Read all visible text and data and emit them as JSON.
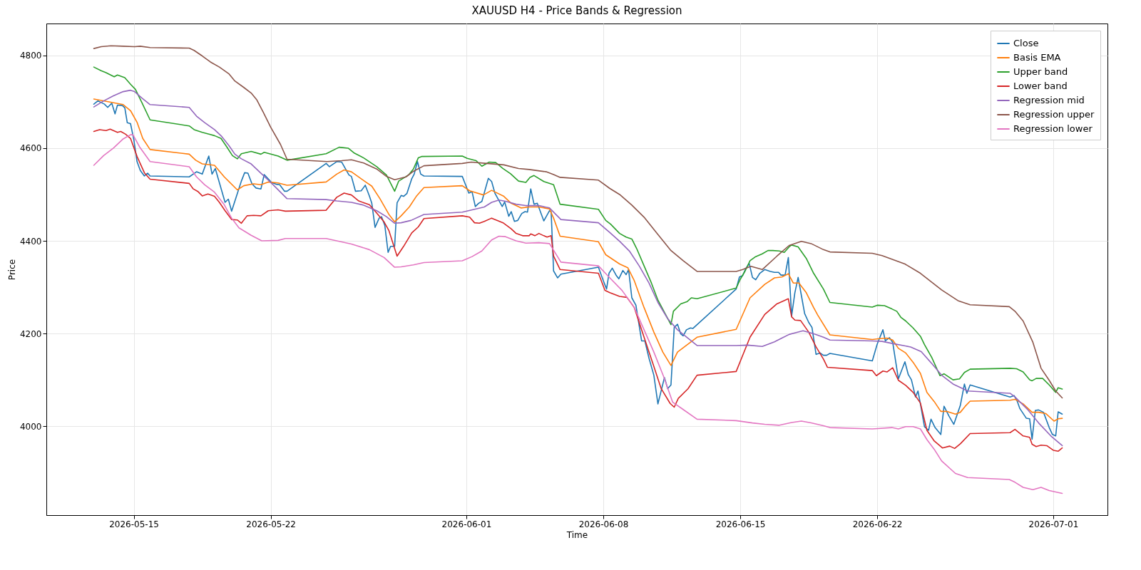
{
  "chart_data": {
    "type": "line",
    "title": "XAUUSD H4 - Price Bands & Regression",
    "xlabel": "Time",
    "ylabel": "Price",
    "xlim": [
      "2026-05-10T12:45",
      "2026-07-03T18:30"
    ],
    "xticks": [
      "2026-05-15",
      "2026-05-22",
      "2026-06-01",
      "2026-06-08",
      "2026-06-15",
      "2026-06-22",
      "2026-07-01"
    ],
    "ylim": [
      3808,
      4869
    ],
    "yticks": [
      4000,
      4200,
      4400,
      4600,
      4800
    ],
    "grid": true,
    "legend": "top right",
    "series": [
      {
        "name": "Close",
        "color": "#1f77b4",
        "x": [
          "2026-05-12T23:00",
          "2026-05-13T04:00",
          "2026-05-13T12:00",
          "2026-05-13T16:00",
          "2026-05-13T21:00",
          "2026-05-14T01:00",
          "2026-05-14T04:00",
          "2026-05-14T10:00",
          "2026-05-14T13:00",
          "2026-05-14T16:00",
          "2026-05-14T20:00",
          "2026-05-15T00:00",
          "2026-05-15T04:00",
          "2026-05-15T08:00",
          "2026-05-15T13:00",
          "2026-05-15T17:00",
          "2026-05-15T20:00",
          "2026-05-17T20:00",
          "2026-05-18T05:00",
          "2026-05-18T12:00",
          "2026-05-18T20:00",
          "2026-05-19T00:00",
          "2026-05-19T04:00",
          "2026-05-19T16:00",
          "2026-05-19T20:00",
          "2026-05-20T00:00",
          "2026-05-20T07:00",
          "2026-05-20T12:00",
          "2026-05-20T16:00",
          "2026-05-20T20:00",
          "2026-05-21T01:00",
          "2026-05-21T06:00",
          "2026-05-21T12:00",
          "2026-05-21T16:00",
          "2026-05-22T01:00",
          "2026-05-22T07:00",
          "2026-05-22T11:00",
          "2026-05-22T17:00",
          "2026-05-22T20:00",
          "2026-05-24T20:00",
          "2026-05-25T00:00",
          "2026-05-25T09:00",
          "2026-05-25T15:00",
          "2026-05-26T00:00",
          "2026-05-26T03:00",
          "2026-05-26T08:00",
          "2026-05-26T15:00",
          "2026-05-26T20:00",
          "2026-05-27T01:00",
          "2026-05-27T04:00",
          "2026-05-27T08:00",
          "2026-05-27T13:00",
          "2026-05-27T16:00",
          "2026-05-27T20:00",
          "2026-05-28T00:00",
          "2026-05-28T03:00",
          "2026-05-28T08:00",
          "2026-05-28T11:00",
          "2026-05-28T16:00",
          "2026-05-28T19:00",
          "2026-05-28T23:00",
          "2026-05-29T05:00",
          "2026-05-29T08:00",
          "2026-05-29T12:00",
          "2026-05-29T16:00",
          "2026-05-29T20:00",
          "2026-05-31T19:00",
          "2026-06-01T03:00",
          "2026-06-01T07:00",
          "2026-06-01T11:00",
          "2026-06-01T15:00",
          "2026-06-01T19:00",
          "2026-06-02T03:00",
          "2026-06-02T07:00",
          "2026-06-02T11:00",
          "2026-06-02T20:00",
          "2026-06-02T23:00",
          "2026-06-03T04:00",
          "2026-06-03T07:00",
          "2026-06-03T11:00",
          "2026-06-03T15:00",
          "2026-06-03T20:00",
          "2026-06-04T00:00",
          "2026-06-04T03:00",
          "2026-06-04T07:00",
          "2026-06-04T11:00",
          "2026-06-04T15:00",
          "2026-06-04T23:00",
          "2026-06-05T06:00",
          "2026-06-05T08:00",
          "2026-06-05T11:00",
          "2026-06-05T16:00",
          "2026-06-05T20:00",
          "2026-06-07T18:00",
          "2026-06-08T00:00",
          "2026-06-08T04:00",
          "2026-06-08T07:00",
          "2026-06-08T11:00",
          "2026-06-08T16:00",
          "2026-06-08T19:00",
          "2026-06-09T00:00",
          "2026-06-09T04:00",
          "2026-06-09T07:00",
          "2026-06-09T11:00",
          "2026-06-09T16:00",
          "2026-06-09T23:00",
          "2026-06-10T03:00",
          "2026-06-10T08:00",
          "2026-06-10T14:00",
          "2026-06-10T19:00",
          "2026-06-11T03:00",
          "2026-06-11T07:00",
          "2026-06-11T11:00",
          "2026-06-11T15:00",
          "2026-06-11T19:00",
          "2026-06-11T23:00",
          "2026-06-12T02:00",
          "2026-06-12T06:00",
          "2026-06-12T11:00",
          "2026-06-12T14:00",
          "2026-06-14T19:00",
          "2026-06-14T23:00",
          "2026-06-15T03:00",
          "2026-06-15T07:00",
          "2026-06-15T11:00",
          "2026-06-15T15:00",
          "2026-06-15T19:00",
          "2026-06-16T00:00",
          "2026-06-16T06:00",
          "2026-06-16T13:00",
          "2026-06-16T18:00",
          "2026-06-16T23:00",
          "2026-06-17T02:00",
          "2026-06-17T07:00",
          "2026-06-17T11:00",
          "2026-06-17T15:00",
          "2026-06-17T19:00",
          "2026-06-17T23:00",
          "2026-06-18T03:00",
          "2026-06-18T07:00",
          "2026-06-18T12:00",
          "2026-06-18T16:00",
          "2026-06-18T21:00",
          "2026-06-19T02:00",
          "2026-06-19T06:00",
          "2026-06-19T10:00",
          "2026-06-19T14:00",
          "2026-06-21T18:00",
          "2026-06-22T00:00",
          "2026-06-22T07:00",
          "2026-06-22T10:00",
          "2026-06-22T15:00",
          "2026-06-22T19:00",
          "2026-06-23T02:00",
          "2026-06-23T10:00",
          "2026-06-23T14:00",
          "2026-06-23T18:00",
          "2026-06-23T23:00",
          "2026-06-24T02:00",
          "2026-06-24T05:00",
          "2026-06-24T10:00",
          "2026-06-24T15:00",
          "2026-06-24T18:00",
          "2026-06-24T23:00",
          "2026-06-25T06:00",
          "2026-06-25T10:00",
          "2026-06-25T16:00",
          "2026-06-25T22:00",
          "2026-06-26T06:00",
          "2026-06-26T11:00",
          "2026-06-26T14:00",
          "2026-06-26T18:00",
          "2026-06-28T19:00",
          "2026-06-29T00:00",
          "2026-06-29T04:00",
          "2026-06-29T07:00",
          "2026-06-29T15:00",
          "2026-06-29T19:00",
          "2026-06-29T22:00",
          "2026-06-30T02:00",
          "2026-06-30T06:00",
          "2026-06-30T12:00",
          "2026-06-30T19:00",
          "2026-06-30T23:00",
          "2026-07-01T03:00",
          "2026-07-01T06:00",
          "2026-07-01T11:00"
        ],
        "values": [
          4695,
          4702,
          4695,
          4688,
          4697,
          4674,
          4693,
          4692,
          4687,
          4655,
          4653,
          4619,
          4571,
          4552,
          4540,
          4546,
          4540,
          4538,
          4549,
          4544,
          4583,
          4544,
          4556,
          4483,
          4490,
          4464,
          4502,
          4529,
          4547,
          4546,
          4523,
          4514,
          4512,
          4543,
          4526,
          4522,
          4521,
          4507,
          4507,
          4567,
          4560,
          4571,
          4570,
          4542,
          4539,
          4507,
          4508,
          4520,
          4497,
          4481,
          4429,
          4449,
          4452,
          4433,
          4375,
          4388,
          4388,
          4482,
          4498,
          4496,
          4502,
          4534,
          4544,
          4571,
          4544,
          4540,
          4539,
          4503,
          4506,
          4474,
          4481,
          4485,
          4535,
          4528,
          4503,
          4474,
          4484,
          4453,
          4463,
          4442,
          4444,
          4459,
          4463,
          4462,
          4512,
          4479,
          4481,
          4443,
          4465,
          4463,
          4335,
          4320,
          4328,
          4343,
          4314,
          4296,
          4330,
          4341,
          4325,
          4318,
          4336,
          4327,
          4338,
          4277,
          4261,
          4184,
          4184,
          4147,
          4110,
          4048,
          4105,
          4081,
          4089,
          4213,
          4220,
          4199,
          4195,
          4208,
          4212,
          4211,
          4296,
          4322,
          4325,
          4341,
          4351,
          4321,
          4316,
          4330,
          4338,
          4334,
          4332,
          4332,
          4326,
          4326,
          4364,
          4238,
          4288,
          4321,
          4282,
          4243,
          4224,
          4213,
          4155,
          4158,
          4153,
          4153,
          4157,
          4141,
          4177,
          4208,
          4184,
          4191,
          4181,
          4102,
          4139,
          4112,
          4100,
          4063,
          4076,
          4048,
          3999,
          3991,
          4015,
          3997,
          3982,
          4043,
          4022,
          4004,
          4045,
          4091,
          4071,
          4089,
          4063,
          4066,
          4053,
          4038,
          4017,
          4016,
          3972,
          4034,
          4035,
          4030,
          3997,
          3982,
          3979,
          4031,
          4026
        ]
      },
      {
        "name": "Basis EMA",
        "color": "#ff7f0e",
        "x": [
          "2026-05-12T23:00",
          "2026-05-13T20:00",
          "2026-05-14T11:00",
          "2026-05-14T20:00",
          "2026-05-15T04:00",
          "2026-05-15T11:00",
          "2026-05-15T20:00",
          "2026-05-17T20:00",
          "2026-05-18T04:00",
          "2026-05-18T12:00",
          "2026-05-19T03:00",
          "2026-05-19T15:00",
          "2026-05-20T07:00",
          "2026-05-20T15:00",
          "2026-05-21T03:00",
          "2026-05-21T12:00",
          "2026-05-21T21:00",
          "2026-05-22T09:00",
          "2026-05-22T20:00",
          "2026-05-24T20:00",
          "2026-05-25T09:00",
          "2026-05-25T18:00",
          "2026-05-26T03:00",
          "2026-05-26T18:00",
          "2026-05-27T04:00",
          "2026-05-27T14:00",
          "2026-05-28T01:00",
          "2026-05-28T08:00",
          "2026-05-28T16:00",
          "2026-05-29T02:00",
          "2026-05-29T11:00",
          "2026-05-29T20:00",
          "2026-05-31T19:00",
          "2026-06-01T04:00",
          "2026-06-01T21:00",
          "2026-06-02T07:00",
          "2026-06-02T22:00",
          "2026-06-03T07:00",
          "2026-06-03T19:00",
          "2026-06-04T05:00",
          "2026-06-04T17:00",
          "2026-06-05T06:00",
          "2026-06-05T11:00",
          "2026-06-05T19:00",
          "2026-06-07T18:00",
          "2026-06-08T03:00",
          "2026-06-08T20:00",
          "2026-06-09T06:00",
          "2026-06-09T14:00",
          "2026-06-10T02:00",
          "2026-06-10T14:00",
          "2026-06-11T01:00",
          "2026-06-11T11:00",
          "2026-06-11T19:00",
          "2026-06-12T19:00",
          "2026-06-14T19:00",
          "2026-06-15T12:00",
          "2026-06-16T06:00",
          "2026-06-16T18:00",
          "2026-06-17T03:00",
          "2026-06-17T11:00",
          "2026-06-17T17:00",
          "2026-06-18T00:00",
          "2026-06-18T09:00",
          "2026-06-18T18:00",
          "2026-06-18T23:00",
          "2026-06-19T14:00",
          "2026-06-21T18:00",
          "2026-06-22T03:00",
          "2026-06-22T12:00",
          "2026-06-22T19:00",
          "2026-06-23T02:00",
          "2026-06-23T11:00",
          "2026-06-23T20:00",
          "2026-06-24T05:00",
          "2026-06-24T13:00",
          "2026-06-24T22:00",
          "2026-06-25T06:00",
          "2026-06-25T13:00",
          "2026-06-26T00:00",
          "2026-06-26T06:00",
          "2026-06-26T12:00",
          "2026-06-26T18:00",
          "2026-06-28T19:00",
          "2026-06-29T01:00",
          "2026-06-29T11:00",
          "2026-06-29T22:00",
          "2026-06-30T06:00",
          "2026-06-30T15:00",
          "2026-07-01T01:00",
          "2026-07-01T06:00",
          "2026-07-01T11:00"
        ],
        "values": [
          4706,
          4699,
          4694,
          4681,
          4656,
          4621,
          4597,
          4587,
          4574,
          4566,
          4563,
          4538,
          4510,
          4519,
          4523,
          4521,
          4527,
          4525,
          4520,
          4527,
          4544,
          4553,
          4549,
          4530,
          4518,
          4491,
          4457,
          4441,
          4454,
          4473,
          4497,
          4515,
          4519,
          4508,
          4499,
          4509,
          4496,
          4481,
          4471,
          4473,
          4473,
          4469,
          4449,
          4410,
          4398,
          4370,
          4350,
          4342,
          4314,
          4256,
          4203,
          4160,
          4131,
          4160,
          4192,
          4209,
          4277,
          4306,
          4320,
          4322,
          4329,
          4309,
          4309,
          4288,
          4256,
          4240,
          4197,
          4187,
          4189,
          4190,
          4186,
          4168,
          4158,
          4138,
          4114,
          4073,
          4053,
          4032,
          4032,
          4026,
          4030,
          4043,
          4054,
          4056,
          4058,
          4048,
          4030,
          4030,
          4027,
          4011,
          4016,
          4017
        ]
      },
      {
        "name": "Upper band",
        "color": "#2ca02c",
        "x": [
          "2026-05-12T23:00",
          "2026-05-13T08:00",
          "2026-05-13T14:00",
          "2026-05-14T00:00",
          "2026-05-14T04:00",
          "2026-05-14T13:00",
          "2026-05-14T20:00",
          "2026-05-15T02:00",
          "2026-05-15T10:00",
          "2026-05-15T20:00",
          "2026-05-17T20:00",
          "2026-05-18T02:00",
          "2026-05-18T12:00",
          "2026-05-18T21:00",
          "2026-05-19T03:00",
          "2026-05-19T11:00",
          "2026-05-19T18:00",
          "2026-05-20T01:00",
          "2026-05-20T07:00",
          "2026-05-20T12:00",
          "2026-05-21T00:00",
          "2026-05-21T12:00",
          "2026-05-21T16:00",
          "2026-05-22T09:00",
          "2026-05-22T20:00",
          "2026-05-24T20:00",
          "2026-05-25T12:00",
          "2026-05-25T23:00",
          "2026-05-26T06:00",
          "2026-05-26T18:00",
          "2026-05-27T10:00",
          "2026-05-27T22:00",
          "2026-05-28T08:00",
          "2026-05-28T13:00",
          "2026-05-29T01:00",
          "2026-05-29T07:00",
          "2026-05-29T13:00",
          "2026-05-29T17:00",
          "2026-05-31T19:00",
          "2026-06-01T01:00",
          "2026-06-01T12:00",
          "2026-06-01T19:00",
          "2026-06-02T04:00",
          "2026-06-02T12:00",
          "2026-06-02T21:00",
          "2026-06-03T06:00",
          "2026-06-03T16:00",
          "2026-06-04T01:00",
          "2026-06-04T06:00",
          "2026-06-04T11:00",
          "2026-06-04T23:00",
          "2026-06-05T11:00",
          "2026-06-05T19:00",
          "2026-06-07T18:00",
          "2026-06-08T03:00",
          "2026-06-08T09:00",
          "2026-06-08T20:00",
          "2026-06-09T04:00",
          "2026-06-09T11:00",
          "2026-06-09T17:00",
          "2026-06-10T02:00",
          "2026-06-10T11:00",
          "2026-06-10T19:00",
          "2026-06-11T11:00",
          "2026-06-11T14:00",
          "2026-06-11T23:00",
          "2026-06-12T07:00",
          "2026-06-12T12:00",
          "2026-06-12T19:00",
          "2026-06-14T19:00",
          "2026-06-15T00:00",
          "2026-06-15T06:00",
          "2026-06-15T12:00",
          "2026-06-15T18:00",
          "2026-06-16T03:00",
          "2026-06-16T10:00",
          "2026-06-16T16:00",
          "2026-06-17T00:00",
          "2026-06-17T06:00",
          "2026-06-17T12:00",
          "2026-06-17T15:00",
          "2026-06-17T23:00",
          "2026-06-18T09:00",
          "2026-06-18T18:00",
          "2026-06-19T06:00",
          "2026-06-19T14:00",
          "2026-06-21T18:00",
          "2026-06-22T00:00",
          "2026-06-22T09:00",
          "2026-06-22T18:00",
          "2026-06-23T00:00",
          "2026-06-23T05:00",
          "2026-06-23T11:00",
          "2026-06-23T20:00",
          "2026-06-24T05:00",
          "2026-06-24T10:00",
          "2026-06-24T19:00",
          "2026-06-25T05:00",
          "2026-06-25T10:00",
          "2026-06-25T21:00",
          "2026-06-26T05:00",
          "2026-06-26T11:00",
          "2026-06-26T18:00",
          "2026-06-28T19:00",
          "2026-06-29T03:00",
          "2026-06-29T11:00",
          "2026-06-29T19:00",
          "2026-06-29T22:00",
          "2026-06-30T03:00",
          "2026-06-30T11:00",
          "2026-06-30T19:00",
          "2026-07-01T03:00",
          "2026-07-01T06:00",
          "2026-07-01T11:00"
        ],
        "values": [
          4775,
          4767,
          4763,
          4754,
          4758,
          4752,
          4738,
          4727,
          4698,
          4661,
          4648,
          4640,
          4634,
          4630,
          4627,
          4621,
          4603,
          4584,
          4577,
          4588,
          4593,
          4587,
          4591,
          4583,
          4574,
          4588,
          4602,
          4600,
          4590,
          4579,
          4560,
          4542,
          4507,
          4529,
          4542,
          4555,
          4579,
          4582,
          4583,
          4578,
          4573,
          4561,
          4570,
          4569,
          4556,
          4545,
          4529,
          4526,
          4537,
          4541,
          4528,
          4521,
          4479,
          4468,
          4444,
          4436,
          4416,
          4408,
          4404,
          4383,
          4346,
          4309,
          4272,
          4219,
          4248,
          4264,
          4269,
          4277,
          4275,
          4298,
          4317,
          4335,
          4357,
          4365,
          4372,
          4379,
          4379,
          4378,
          4375,
          4387,
          4391,
          4387,
          4362,
          4330,
          4296,
          4267,
          4257,
          4261,
          4260,
          4253,
          4248,
          4235,
          4227,
          4212,
          4194,
          4176,
          4148,
          4109,
          4113,
          4100,
          4102,
          4116,
          4123,
          4125,
          4124,
          4117,
          4100,
          4098,
          4103,
          4103,
          4089,
          4073,
          4083,
          4080
        ]
      },
      {
        "name": "Lower band",
        "color": "#d62728",
        "x": [
          "2026-05-12T23:00",
          "2026-05-13T06:00",
          "2026-05-13T14:00",
          "2026-05-13T19:00",
          "2026-05-14T04:00",
          "2026-05-14T08:00",
          "2026-05-14T14:00",
          "2026-05-14T20:00",
          "2026-05-15T04:00",
          "2026-05-15T13:00",
          "2026-05-15T20:00",
          "2026-05-17T20:00",
          "2026-05-18T01:00",
          "2026-05-18T07:00",
          "2026-05-18T12:00",
          "2026-05-18T19:00",
          "2026-05-19T03:00",
          "2026-05-19T09:00",
          "2026-05-19T16:00",
          "2026-05-20T00:00",
          "2026-05-20T07:00",
          "2026-05-20T12:00",
          "2026-05-20T19:00",
          "2026-05-21T03:00",
          "2026-05-21T12:00",
          "2026-05-21T21:00",
          "2026-05-22T09:00",
          "2026-05-22T18:00",
          "2026-05-24T20:00",
          "2026-05-25T09:00",
          "2026-05-25T18:00",
          "2026-05-26T03:00",
          "2026-05-26T12:00",
          "2026-05-27T01:00",
          "2026-05-27T10:00",
          "2026-05-27T19:00",
          "2026-05-28T01:00",
          "2026-05-28T11:00",
          "2026-05-28T19:00",
          "2026-05-29T05:00",
          "2026-05-29T13:00",
          "2026-05-29T20:00",
          "2026-05-31T19:00",
          "2026-06-01T04:00",
          "2026-06-01T10:00",
          "2026-06-01T16:00",
          "2026-06-01T22:00",
          "2026-06-02T07:00",
          "2026-06-02T21:00",
          "2026-06-03T07:00",
          "2026-06-03T13:00",
          "2026-06-03T21:00",
          "2026-06-04T05:00",
          "2026-06-04T07:00",
          "2026-06-04T12:00",
          "2026-06-04T17:00",
          "2026-06-04T23:00",
          "2026-06-05T03:00",
          "2026-06-05T08:00",
          "2026-06-05T11:00",
          "2026-06-05T19:00",
          "2026-06-07T18:00",
          "2026-06-08T02:00",
          "2026-06-08T08:00",
          "2026-06-08T20:00",
          "2026-06-09T05:00",
          "2026-06-09T14:00",
          "2026-06-10T02:00",
          "2026-06-10T14:00",
          "2026-06-10T23:00",
          "2026-06-11T10:00",
          "2026-06-11T15:00",
          "2026-06-11T20:00",
          "2026-06-12T08:00",
          "2026-06-12T19:00",
          "2026-06-14T19:00",
          "2026-06-15T12:00",
          "2026-06-16T06:00",
          "2026-06-16T21:00",
          "2026-06-17T11:00",
          "2026-06-17T15:00",
          "2026-06-17T19:00",
          "2026-06-18T02:00",
          "2026-06-18T12:00",
          "2026-06-18T21:00",
          "2026-06-19T06:00",
          "2026-06-19T11:00",
          "2026-06-21T18:00",
          "2026-06-21T23:00",
          "2026-06-22T07:00",
          "2026-06-22T12:00",
          "2026-06-22T19:00",
          "2026-06-23T02:00",
          "2026-06-23T11:00",
          "2026-06-23T20:00",
          "2026-06-24T05:00",
          "2026-06-24T13:00",
          "2026-06-24T22:00",
          "2026-06-25T08:00",
          "2026-06-25T17:00",
          "2026-06-25T23:00",
          "2026-06-26T06:00",
          "2026-06-26T18:00",
          "2026-06-28T19:00",
          "2026-06-29T01:00",
          "2026-06-29T11:00",
          "2026-06-29T19:00",
          "2026-06-29T22:00",
          "2026-06-30T03:00",
          "2026-06-30T09:00",
          "2026-06-30T16:00",
          "2026-07-01T00:00",
          "2026-07-01T06:00",
          "2026-07-01T11:00"
        ],
        "values": [
          4636,
          4640,
          4638,
          4641,
          4634,
          4636,
          4630,
          4621,
          4582,
          4547,
          4533,
          4524,
          4512,
          4506,
          4497,
          4501,
          4496,
          4483,
          4465,
          4446,
          4445,
          4438,
          4454,
          4455,
          4454,
          4465,
          4467,
          4464,
          4466,
          4494,
          4503,
          4499,
          4486,
          4478,
          4460,
          4441,
          4422,
          4367,
          4388,
          4417,
          4430,
          4448,
          4454,
          4451,
          4439,
          4438,
          4442,
          4449,
          4439,
          4426,
          4416,
          4411,
          4411,
          4415,
          4411,
          4416,
          4411,
          4408,
          4411,
          4367,
          4338,
          4330,
          4293,
          4288,
          4280,
          4278,
          4256,
          4192,
          4129,
          4081,
          4049,
          4041,
          4060,
          4081,
          4110,
          4118,
          4192,
          4241,
          4264,
          4275,
          4236,
          4229,
          4228,
          4203,
          4171,
          4145,
          4127,
          4120,
          4109,
          4119,
          4117,
          4126,
          4099,
          4088,
          4073,
          4050,
          3991,
          3968,
          3953,
          3957,
          3952,
          3962,
          3984,
          3986,
          3993,
          3979,
          3976,
          3961,
          3956,
          3959,
          3958,
          3948,
          3946,
          3953
        ]
      },
      {
        "name": "Regression mid",
        "color": "#9467bd",
        "x": [
          "2026-05-12T23:00",
          "2026-05-13T11:00",
          "2026-05-13T23:00",
          "2026-05-14T11:00",
          "2026-05-14T20:00",
          "2026-05-15T01:00",
          "2026-05-15T10:00",
          "2026-05-15T20:00",
          "2026-05-17T20:00",
          "2026-05-18T05:00",
          "2026-05-18T15:00",
          "2026-05-19T03:00",
          "2026-05-19T12:00",
          "2026-05-19T21:00",
          "2026-05-20T04:00",
          "2026-05-20T12:00",
          "2026-05-21T00:00",
          "2026-05-21T12:00",
          "2026-05-22T03:00",
          "2026-05-22T20:00",
          "2026-05-24T20:00",
          "2026-05-25T09:00",
          "2026-05-26T03:00",
          "2026-05-26T18:00",
          "2026-05-27T10:00",
          "2026-05-27T22:00",
          "2026-05-28T08:00",
          "2026-05-28T16:00",
          "2026-05-29T04:00",
          "2026-05-29T20:00",
          "2026-05-31T19:00",
          "2026-06-01T10:00",
          "2026-06-01T22:00",
          "2026-06-02T07:00",
          "2026-06-02T16:00",
          "2026-06-03T01:00",
          "2026-06-03T13:00",
          "2026-06-04T01:00",
          "2026-06-04T17:00",
          "2026-06-05T06:00",
          "2026-06-05T20:00",
          "2026-06-07T18:00",
          "2026-06-08T08:00",
          "2026-06-08T20:00",
          "2026-06-09T08:00",
          "2026-06-09T20:00",
          "2026-06-10T08:00",
          "2026-06-10T19:00",
          "2026-06-11T07:00",
          "2026-06-11T19:00",
          "2026-06-12T19:00",
          "2026-06-14T19:00",
          "2026-06-15T09:00",
          "2026-06-16T03:00",
          "2026-06-16T18:00",
          "2026-06-17T03:00",
          "2026-06-17T12:00",
          "2026-06-17T18:00",
          "2026-06-18T05:00",
          "2026-06-18T17:00",
          "2026-06-19T06:00",
          "2026-06-19T14:00",
          "2026-06-21T18:00",
          "2026-06-22T06:00",
          "2026-06-22T20:00",
          "2026-06-23T17:00",
          "2026-06-24T06:00",
          "2026-06-24T19:00",
          "2026-06-25T07:00",
          "2026-06-25T21:00",
          "2026-06-26T15:00",
          "2026-06-28T19:00",
          "2026-06-29T01:00",
          "2026-06-29T16:00",
          "2026-06-30T06:00",
          "2026-06-30T21:00",
          "2026-07-01T11:00"
        ],
        "values": [
          4689,
          4702,
          4713,
          4722,
          4725,
          4722,
          4708,
          4694,
          4688,
          4669,
          4655,
          4640,
          4625,
          4605,
          4587,
          4577,
          4566,
          4546,
          4521,
          4491,
          4489,
          4486,
          4483,
          4477,
          4465,
          4452,
          4438,
          4439,
          4444,
          4457,
          4462,
          4468,
          4473,
          4483,
          4488,
          4485,
          4479,
          4476,
          4476,
          4471,
          4446,
          4439,
          4418,
          4399,
          4378,
          4346,
          4309,
          4267,
          4232,
          4208,
          4174,
          4174,
          4175,
          4172,
          4182,
          4190,
          4198,
          4201,
          4206,
          4200,
          4192,
          4186,
          4184,
          4183,
          4178,
          4171,
          4161,
          4135,
          4110,
          4091,
          4076,
          4071,
          4063,
          4037,
          4007,
          3979,
          3958
        ]
      },
      {
        "name": "Regression upper",
        "color": "#8c564b",
        "x": [
          "2026-05-12T23:00",
          "2026-05-13T08:00",
          "2026-05-13T20:00",
          "2026-05-14T11:00",
          "2026-05-15T01:00",
          "2026-05-15T08:00",
          "2026-05-15T20:00",
          "2026-05-17T20:00",
          "2026-05-18T02:00",
          "2026-05-18T12:00",
          "2026-05-18T22:00",
          "2026-05-19T09:00",
          "2026-05-19T21:00",
          "2026-05-20T04:00",
          "2026-05-20T15:00",
          "2026-05-21T00:00",
          "2026-05-21T07:00",
          "2026-05-21T15:00",
          "2026-05-22T00:00",
          "2026-05-22T12:00",
          "2026-05-22T20:00",
          "2026-05-24T21:00",
          "2026-05-25T15:00",
          "2026-05-26T03:00",
          "2026-05-26T18:00",
          "2026-05-27T10:00",
          "2026-05-27T22:00",
          "2026-05-28T08:00",
          "2026-05-28T22:00",
          "2026-05-29T07:00",
          "2026-05-29T20:00",
          "2026-05-31T19:00",
          "2026-06-01T06:00",
          "2026-06-02T01:00",
          "2026-06-02T22:00",
          "2026-06-03T16:00",
          "2026-06-04T05:00",
          "2026-06-05T02:00",
          "2026-06-05T11:00",
          "2026-06-05T19:00",
          "2026-06-07T18:00",
          "2026-06-08T08:00",
          "2026-06-08T20:00",
          "2026-06-09T11:00",
          "2026-06-10T02:00",
          "2026-06-10T17:00",
          "2026-06-11T11:00",
          "2026-06-12T02:00",
          "2026-06-12T19:00",
          "2026-06-14T19:00",
          "2026-06-15T03:00",
          "2026-06-15T13:00",
          "2026-06-16T03:00",
          "2026-06-16T21:00",
          "2026-06-17T12:00",
          "2026-06-18T03:00",
          "2026-06-18T15:00",
          "2026-06-19T06:00",
          "2026-06-19T14:00",
          "2026-06-21T18:00",
          "2026-06-22T06:00",
          "2026-06-23T10:00",
          "2026-06-24T05:00",
          "2026-06-25T07:00",
          "2026-06-26T03:00",
          "2026-06-26T18:00",
          "2026-06-28T18:00",
          "2026-06-29T01:00",
          "2026-06-29T11:00",
          "2026-06-29T23:00",
          "2026-06-30T09:00",
          "2026-06-30T19:00",
          "2026-07-01T03:00",
          "2026-07-01T11:00"
        ],
        "values": [
          4815,
          4819,
          4821,
          4820,
          4819,
          4820,
          4817,
          4816,
          4811,
          4799,
          4786,
          4775,
          4760,
          4745,
          4731,
          4719,
          4704,
          4677,
          4645,
          4608,
          4576,
          4571,
          4573,
          4575,
          4568,
          4555,
          4539,
          4532,
          4538,
          4550,
          4562,
          4567,
          4570,
          4567,
          4564,
          4556,
          4554,
          4549,
          4543,
          4537,
          4531,
          4513,
          4500,
          4477,
          4451,
          4418,
          4379,
          4357,
          4334,
          4334,
          4338,
          4345,
          4338,
          4367,
          4390,
          4399,
          4394,
          4381,
          4376,
          4373,
          4368,
          4350,
          4330,
          4294,
          4271,
          4262,
          4258,
          4248,
          4227,
          4181,
          4125,
          4099,
          4076,
          4061
        ]
      },
      {
        "name": "Regression lower",
        "color": "#e377c2",
        "x": [
          "2026-05-12T23:00",
          "2026-05-13T11:00",
          "2026-05-13T23:00",
          "2026-05-14T11:00",
          "2026-05-14T20:00",
          "2026-05-14T23:00",
          "2026-05-15T07:00",
          "2026-05-15T20:00",
          "2026-05-17T20:00",
          "2026-05-18T05:00",
          "2026-05-18T15:00",
          "2026-05-19T03:00",
          "2026-05-19T15:00",
          "2026-05-20T00:00",
          "2026-05-20T09:00",
          "2026-05-21T00:00",
          "2026-05-21T13:00",
          "2026-05-22T09:00",
          "2026-05-22T18:00",
          "2026-05-24T20:00",
          "2026-05-26T03:00",
          "2026-05-27T01:00",
          "2026-05-27T19:00",
          "2026-05-28T08:00",
          "2026-05-28T16:00",
          "2026-05-29T07:00",
          "2026-05-29T20:00",
          "2026-05-31T19:00",
          "2026-06-01T07:00",
          "2026-06-01T19:00",
          "2026-06-02T07:00",
          "2026-06-02T16:00",
          "2026-06-03T00:00",
          "2026-06-03T13:00",
          "2026-06-04T01:00",
          "2026-06-04T17:00",
          "2026-06-05T06:00",
          "2026-06-05T20:00",
          "2026-06-07T18:00",
          "2026-06-08T08:00",
          "2026-06-08T23:00",
          "2026-06-09T14:00",
          "2026-06-10T02:00",
          "2026-06-10T14:00",
          "2026-06-11T02:00",
          "2026-06-11T13:00",
          "2026-06-12T02:00",
          "2026-06-12T19:00",
          "2026-06-14T19:00",
          "2026-06-15T15:00",
          "2026-06-16T06:00",
          "2026-06-17T00:00",
          "2026-06-17T15:00",
          "2026-06-18T03:00",
          "2026-06-18T15:00",
          "2026-06-19T06:00",
          "2026-06-19T14:00",
          "2026-06-21T18:00",
          "2026-06-22T18:00",
          "2026-06-23T02:00",
          "2026-06-23T11:00",
          "2026-06-23T20:00",
          "2026-06-24T05:00",
          "2026-06-24T13:00",
          "2026-06-24T22:00",
          "2026-06-25T07:00",
          "2026-06-26T00:00",
          "2026-06-26T15:00",
          "2026-06-28T18:00",
          "2026-06-29T01:00",
          "2026-06-29T11:00",
          "2026-06-29T23:00",
          "2026-06-30T09:00",
          "2026-06-30T19:00",
          "2026-07-01T11:00"
        ],
        "values": [
          4563,
          4584,
          4600,
          4620,
          4629,
          4629,
          4603,
          4571,
          4560,
          4538,
          4521,
          4505,
          4478,
          4449,
          4428,
          4412,
          4400,
          4401,
          4405,
          4405,
          4393,
          4381,
          4364,
          4343,
          4344,
          4348,
          4353,
          4357,
          4366,
          4378,
          4402,
          4410,
          4409,
          4400,
          4395,
          4396,
          4394,
          4354,
          4346,
          4320,
          4293,
          4256,
          4208,
          4160,
          4107,
          4052,
          4036,
          4015,
          4012,
          4007,
          4004,
          4002,
          4008,
          4011,
          4007,
          4001,
          3997,
          3994,
          3997,
          3994,
          3999,
          3999,
          3994,
          3971,
          3950,
          3925,
          3898,
          3889,
          3885,
          3879,
          3868,
          3863,
          3868,
          3861,
          3855
        ]
      }
    ]
  }
}
